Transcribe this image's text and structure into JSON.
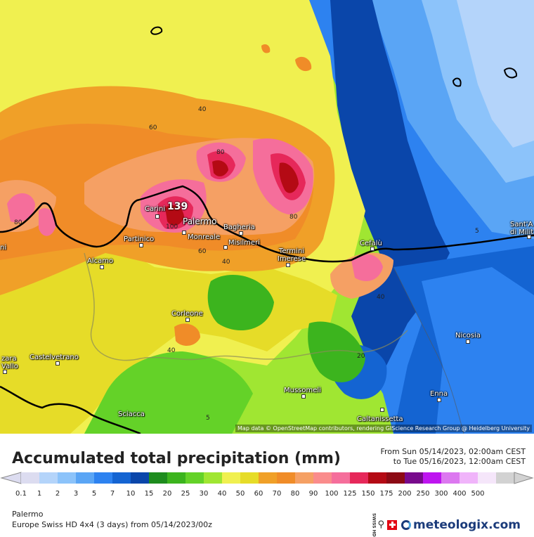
{
  "map": {
    "attribution": "Map data © OpenStreetMap contributors, rendering GIScience Research Group @ Heidelberg University",
    "cities": [
      {
        "name": "Carini",
        "dot": true
      },
      {
        "name": "Palermo",
        "dot": true
      },
      {
        "name": "Bagheria",
        "dot": true
      },
      {
        "name": "Partinico",
        "dot": true
      },
      {
        "name": "Monreale",
        "dot": true
      },
      {
        "name": "Misilmeri",
        "dot": true
      },
      {
        "name": "Termini Imerese",
        "dot": true
      },
      {
        "name": "Cefalù",
        "dot": true
      },
      {
        "name": "Alcamo",
        "dot": true
      },
      {
        "name": "Corleone",
        "dot": true
      },
      {
        "name": "Castelvetrano",
        "dot": true
      },
      {
        "name": "zara Vallo",
        "dot": true
      },
      {
        "name": "Sciacca",
        "dot": false
      },
      {
        "name": "Mussomeli",
        "dot": true
      },
      {
        "name": "Nicosia",
        "dot": true
      },
      {
        "name": "Enna",
        "dot": true
      },
      {
        "name": "Caltanissetta",
        "dot": true
      },
      {
        "name": "Sant'A di Milit",
        "dot": true
      },
      {
        "name": "ni",
        "dot": false
      }
    ],
    "contour_labels": [
      "40",
      "60",
      "80",
      "80",
      "80",
      "100",
      "60",
      "40",
      "40",
      "40",
      "20",
      "5",
      "5",
      "139"
    ],
    "max_value_label": "139"
  },
  "legend": {
    "title": "Accumulated total precipitation (mm)",
    "period_from": "From Sun 05/14/2023, 02:00am CEST",
    "period_to": "to Tue 05/16/2023, 12:00am CEST",
    "values": [
      "0.1",
      "1",
      "2",
      "3",
      "5",
      "7",
      "10",
      "15",
      "20",
      "25",
      "30",
      "40",
      "50",
      "60",
      "70",
      "80",
      "90",
      "100",
      "125",
      "150",
      "175",
      "200",
      "250",
      "300",
      "400",
      "500"
    ],
    "colors": [
      "#dcdcf0",
      "#b4d4fa",
      "#8cc3fa",
      "#5aa5f5",
      "#2d82f0",
      "#1464d2",
      "#0a46aa",
      "#1e8c1e",
      "#3cb41e",
      "#64d228",
      "#a0e632",
      "#f0f050",
      "#e6dc28",
      "#f0a028",
      "#f08c28",
      "#f5a064",
      "#fa8c8c",
      "#f56e9b",
      "#e6285a",
      "#b40a14",
      "#8c0a14",
      "#780a8c",
      "#be14f0",
      "#dc78f0",
      "#f0b4fa",
      "#f5e6fa",
      "#d2d2d2"
    ],
    "location": "Palermo",
    "model": "Europe Swiss HD 4x4 (3 days) from 05/14/2023/00z",
    "brand": "meteologix.com",
    "swiss_hd_label": "SWISS HD"
  }
}
